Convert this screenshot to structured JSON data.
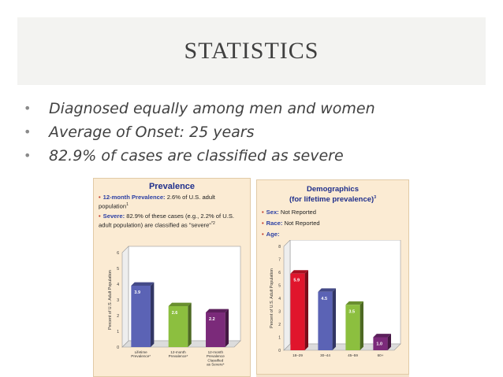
{
  "slide": {
    "title": "STATISTICS",
    "bullets": [
      "Diagnosed equally among men and women",
      "Average of Onset: 25 years",
      "82.9% of cases are classified as severe"
    ]
  },
  "left_panel": {
    "title": "Prevalence",
    "notes": [
      {
        "bold": "12-month Prevalence:",
        "text": " 2.6% of U.S. adult population",
        "sup": "1"
      },
      {
        "bold": "Severe:",
        "text": " 82.9% of these cases (e.g., 2.2% of U.S. adult population) are classified as \"severe\"",
        "sup": "*2"
      }
    ]
  },
  "right_panel": {
    "title_line1": "Demographics",
    "title_line2": "(for lifetime prevalence)",
    "title_sup": "3",
    "notes": [
      {
        "bold": "Sex:",
        "text": " Not Reported"
      },
      {
        "bold": "Race:",
        "text": " Not Reported"
      },
      {
        "bold": "Age:",
        "text": ""
      }
    ]
  },
  "colors": {
    "panel_bg": "#fbebd3",
    "title_blue": "#1f2f8c",
    "bar_blue": "#5b63b5",
    "bar_green": "#8cbf3f",
    "bar_purple": "#7b2a7a",
    "bar_red": "#e0152c"
  },
  "chart_data": [
    {
      "type": "bar",
      "title": "",
      "xlabel": "",
      "ylabel": "Percent of U.S. Adult Population",
      "ylim": [
        0,
        6
      ],
      "yticks": [
        "0",
        "1",
        "2",
        "3",
        "4",
        "5",
        "6"
      ],
      "categories": [
        "Lifetime Prevalence*",
        "12-month Prevalence*",
        "12-month Prevalence Classified as Severe*"
      ],
      "values": [
        3.9,
        2.6,
        2.2
      ],
      "value_labels": [
        "3.9",
        "2.6",
        "2.2"
      ],
      "colors": [
        "#5b63b5",
        "#8cbf3f",
        "#7b2a7a"
      ]
    },
    {
      "type": "bar",
      "title": "",
      "xlabel": "",
      "ylabel": "Percent of U.S. Adult Population",
      "ylim": [
        0,
        8
      ],
      "yticks": [
        "0",
        "1",
        "2",
        "3",
        "4",
        "5",
        "6",
        "7",
        "8"
      ],
      "categories": [
        "18–29",
        "30–44",
        "45–59",
        "60+"
      ],
      "values": [
        5.9,
        4.5,
        3.5,
        1.0
      ],
      "value_labels": [
        "5.9",
        "4.5",
        "3.5",
        "1.0"
      ],
      "colors": [
        "#e0152c",
        "#5b63b5",
        "#8cbf3f",
        "#7b2a7a"
      ]
    }
  ]
}
